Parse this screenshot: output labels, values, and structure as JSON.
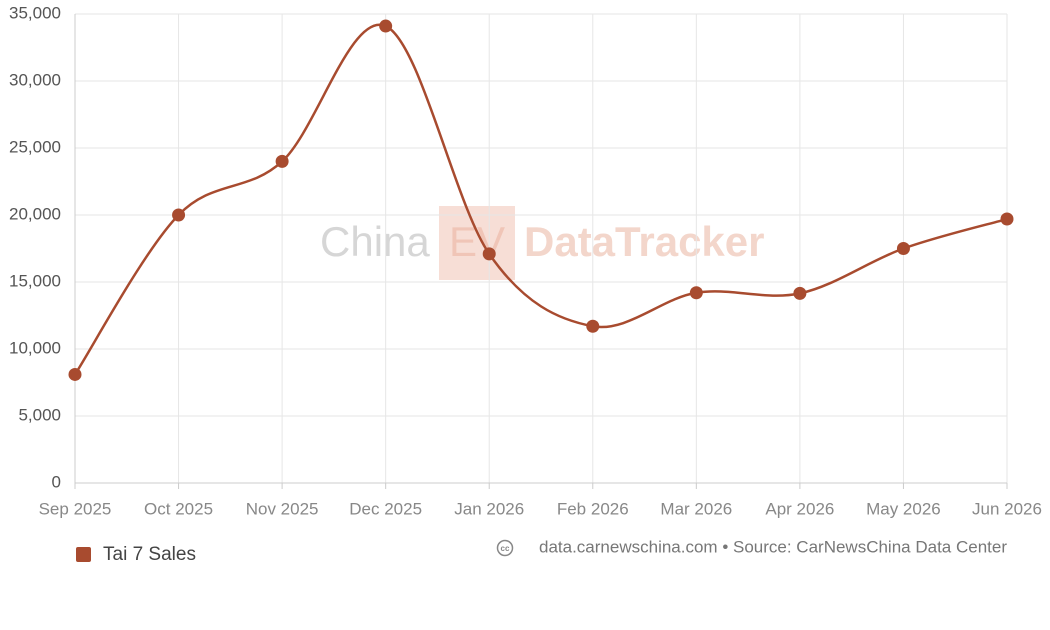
{
  "chart_data": {
    "type": "line",
    "categories": [
      "Sep 2025",
      "Oct 2025",
      "Nov 2025",
      "Dec 2025",
      "Jan 2026",
      "Feb 2026",
      "Mar 2026",
      "Apr 2026",
      "May 2026",
      "Jun 2026"
    ],
    "series": [
      {
        "name": "Tai 7 Sales",
        "color": "#a84b2f",
        "values": [
          8100,
          20000,
          24000,
          34100,
          17100,
          11700,
          14200,
          14150,
          17500,
          19700
        ]
      }
    ],
    "ylim": [
      0,
      35000
    ],
    "yticks": [
      0,
      {
        "value": 5000,
        "label": "5,000"
      },
      {
        "value": 10000,
        "label": "10,000"
      },
      {
        "value": 15000,
        "label": "15,000"
      },
      {
        "value": 20000,
        "label": "20,000"
      },
      {
        "value": 25000,
        "label": "25,000"
      },
      {
        "value": 30000,
        "label": "30,000"
      },
      {
        "value": 35000,
        "label": "35,000"
      }
    ],
    "grid": true,
    "smooth": true,
    "watermark": {
      "left": "China",
      "box": "EV",
      "right": "DataTracker"
    },
    "source": "data.carnewschina.com • Source: CarNewsChina Data Center"
  }
}
